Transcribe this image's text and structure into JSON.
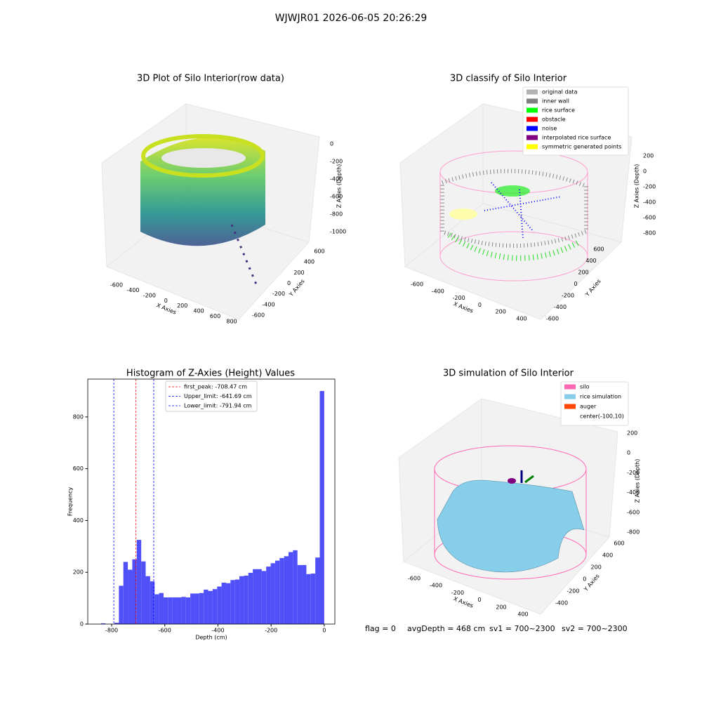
{
  "title": "WJWJR01 2026-06-05 20:26:29",
  "footer": [
    "flag = 0",
    "avgDepth = 468 cm",
    "sv1 = 700~2300",
    "sv2 = 700~2300"
  ],
  "chart_data": [
    {
      "type": "scatter3d",
      "title": "3D Plot of Silo Interior(row data)",
      "x_label": "X Axies",
      "y_label": "Y Axies",
      "z_label": "Z Axies (Depth)",
      "xticks": [
        -600,
        -400,
        -200,
        0,
        200,
        400,
        600,
        800
      ],
      "yticks": [
        -600,
        -400,
        -200,
        0,
        200,
        400,
        600
      ],
      "zticks": [
        0,
        -200,
        -400,
        -600,
        -800,
        -1000
      ]
    },
    {
      "type": "scatter3d",
      "title": "3D classify of Silo Interior",
      "x_label": "X Axies",
      "y_label": "Y Axies",
      "z_label": "Z Axies (Depth)",
      "xticks": [
        -600,
        -400,
        -200,
        0,
        200,
        400
      ],
      "yticks": [
        -600,
        -400,
        -200,
        0,
        200,
        400,
        600
      ],
      "zticks": [
        200,
        0,
        -200,
        -400,
        -600,
        -800
      ],
      "legend": [
        {
          "name": "original data",
          "color": "#b3b3b3"
        },
        {
          "name": "inner wall",
          "color": "#808080"
        },
        {
          "name": "rice surface",
          "color": "#00ff00"
        },
        {
          "name": "obstacle",
          "color": "#ff0000"
        },
        {
          "name": "noise",
          "color": "#0000ff"
        },
        {
          "name": "interpolated rice surface",
          "color": "#800080"
        },
        {
          "name": "symmetric generated points",
          "color": "#ffff00"
        }
      ]
    },
    {
      "type": "histogram",
      "title": "Histogram of Z-Axies (Height) Values",
      "x_label": "Depth (cm)",
      "y_label": "Frequency",
      "color": "#5050f8",
      "bins": [
        -840,
        -823.2,
        -806.4,
        -789.6,
        -772.8,
        -756,
        -739.2,
        -722.4,
        -705.6,
        -688.8,
        -672,
        -655.2,
        -638.4,
        -621.6,
        -604.8,
        -588,
        -571.2,
        -554.4,
        -537.6,
        -520.8,
        -504,
        -487.2,
        -470.4,
        -453.6,
        -436.8,
        -420,
        -403.2,
        -386.4,
        -369.6,
        -352.8,
        -336,
        -319.2,
        -302.4,
        -285.6,
        -268.8,
        -252,
        -235.2,
        -218.4,
        -201.6,
        -184.8,
        -168,
        -151.2,
        -134.4,
        -117.6,
        -100.8,
        -84,
        -67.2,
        -50.4,
        -33.6,
        -16.8,
        0
      ],
      "values": [
        3,
        0,
        0,
        5,
        148,
        240,
        210,
        250,
        325,
        242,
        185,
        165,
        115,
        120,
        103,
        103,
        103,
        103,
        105,
        103,
        118,
        118,
        120,
        133,
        128,
        135,
        145,
        160,
        158,
        170,
        172,
        185,
        187,
        198,
        212,
        212,
        205,
        222,
        235,
        245,
        255,
        262,
        278,
        285,
        228,
        228,
        193,
        195,
        257,
        900
      ],
      "xlim": [
        -890,
        40
      ],
      "ylim": [
        0,
        946
      ],
      "xticks": [
        -800,
        -600,
        -400,
        -200,
        0
      ],
      "yticks": [
        0,
        200,
        400,
        600,
        800
      ],
      "lines": [
        {
          "label": "first_peak: -708.47 cm",
          "value": -708.47,
          "color": "#ff0000"
        },
        {
          "label": "Upper_limit: -641.69 cm",
          "value": -641.69,
          "color": "#0000ff"
        },
        {
          "label": "Lower_limit: -791.94 cm",
          "value": -791.94,
          "color": "#0000ff"
        }
      ]
    },
    {
      "type": "surface3d",
      "title": "3D simulation of Silo Interior",
      "x_label": "X Axies",
      "y_label": "Y Axies",
      "z_label": "Z Axies (Depth)",
      "xticks": [
        -600,
        -400,
        -200,
        0,
        200,
        400
      ],
      "yticks": [
        -400,
        -200,
        0,
        200,
        400,
        600
      ],
      "zticks": [
        200,
        0,
        -200,
        -400,
        -600,
        -800
      ],
      "legend": [
        {
          "name": "silo",
          "color": "#ff69b4"
        },
        {
          "name": "rice simulation",
          "color": "#87ceeb"
        },
        {
          "name": "auger",
          "color": "#ff4500"
        },
        {
          "name": "center(-100,10)"
        }
      ]
    }
  ]
}
